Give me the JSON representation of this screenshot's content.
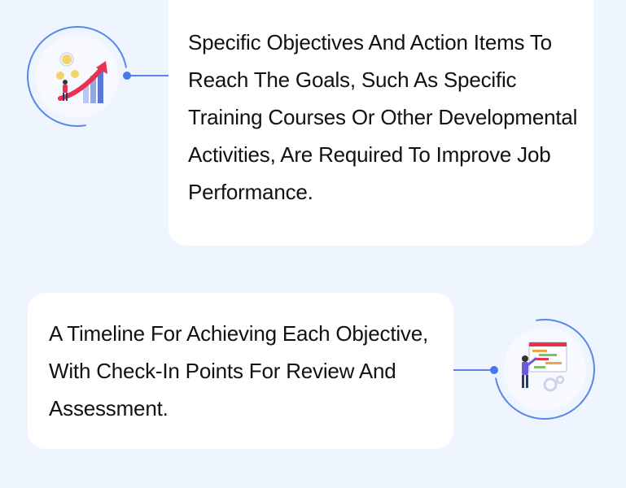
{
  "items": [
    {
      "text": "Specific Objectives And Action Items To Reach The Goals, Such As Specific Training Courses Or Other Developmental Activities, Are Required To Improve Job Performance.",
      "illustration_icon": "growth-chart-icon"
    },
    {
      "text": "A Timeline For Achieving Each Objective, With Check-In Points For Review And Assessment.",
      "illustration_icon": "timeline-board-icon"
    }
  ],
  "colors": {
    "background": "#eef5fe",
    "card": "#ffffff",
    "accent": "#5a86e8",
    "arrow": "#e8334f"
  }
}
